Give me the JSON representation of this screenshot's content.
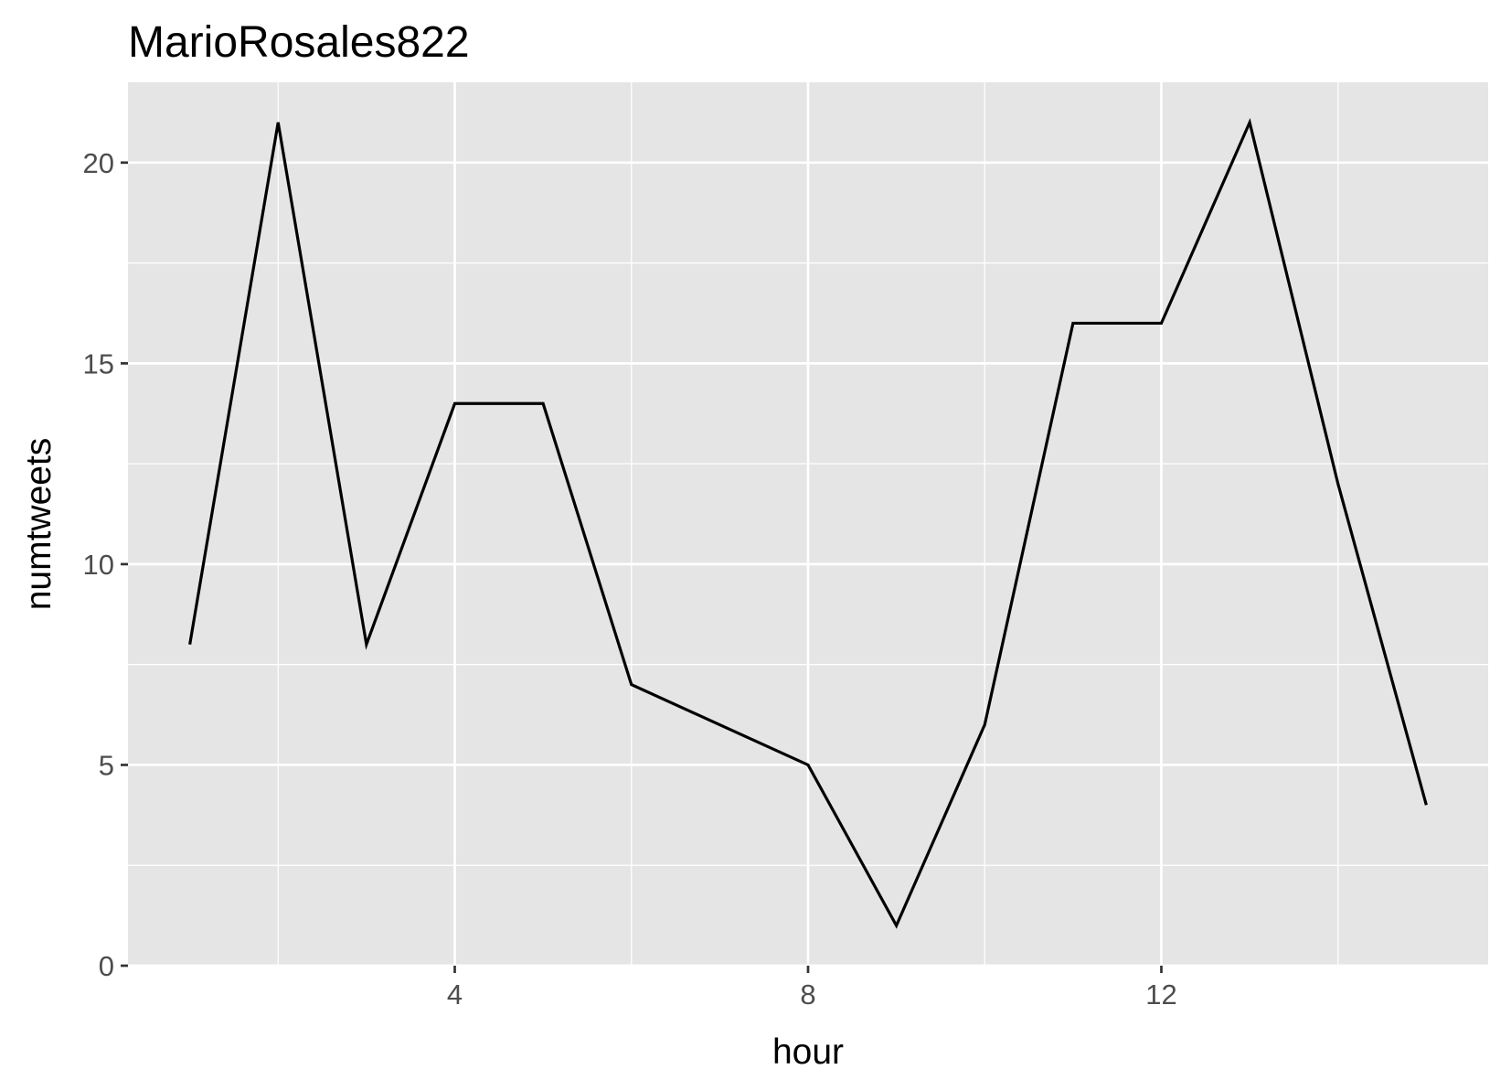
{
  "chart_data": {
    "type": "line",
    "title": "MarioRosales822",
    "xlabel": "hour",
    "ylabel": "numtweets",
    "xlim": [
      0.3,
      15.7
    ],
    "ylim": [
      0,
      22
    ],
    "x_ticks": [
      4,
      8,
      12
    ],
    "x_ticks_minor": [
      2,
      6,
      10,
      14
    ],
    "y_ticks": [
      0,
      5,
      10,
      15,
      20
    ],
    "y_ticks_minor": [
      2.5,
      7.5,
      12.5,
      17.5
    ],
    "grid": true,
    "colors": {
      "panel_background": "#e5e5e5",
      "grid": "#ffffff",
      "line": "#000000",
      "tick_label": "#4d4d4d",
      "tick_mark": "#333333"
    },
    "series": [
      {
        "x": [
          1,
          2,
          3,
          4,
          5,
          6,
          7,
          8,
          9,
          10,
          11,
          12,
          13,
          14,
          15
        ],
        "values": [
          8,
          21,
          8,
          14,
          14,
          7,
          6,
          5,
          1,
          6,
          16,
          16,
          21,
          12,
          4
        ]
      }
    ]
  }
}
